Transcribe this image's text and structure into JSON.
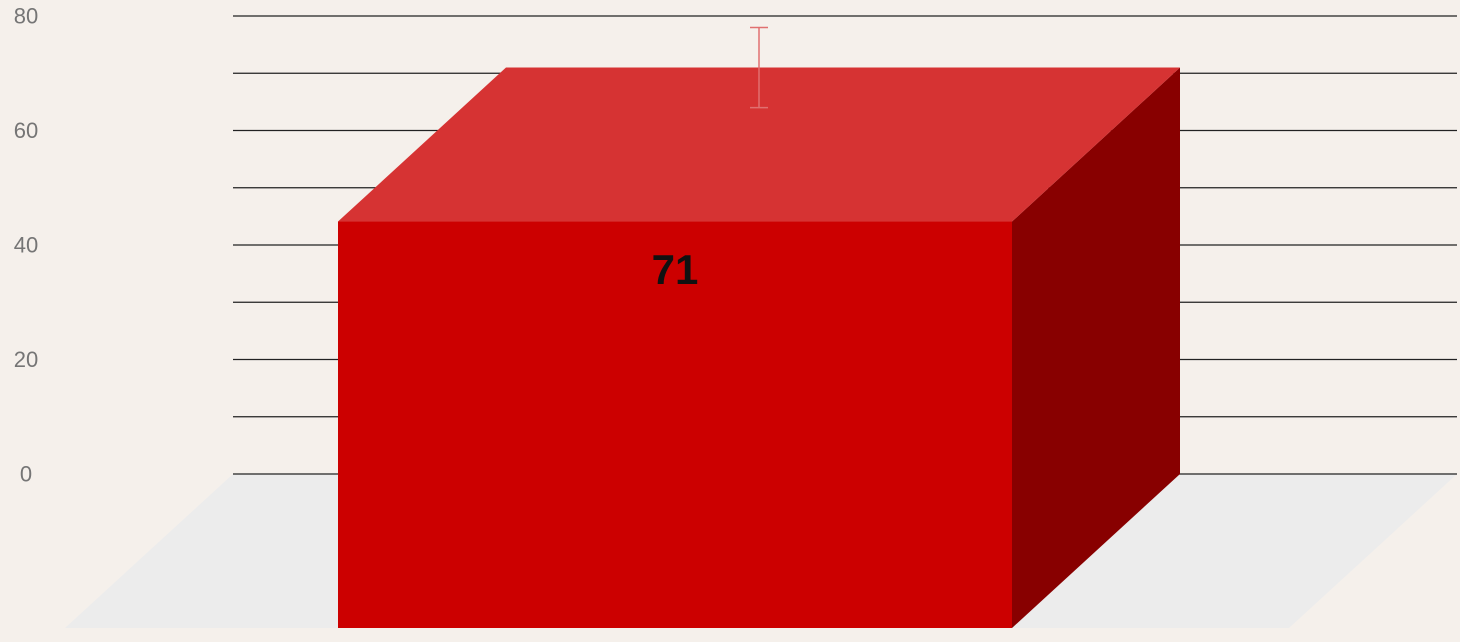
{
  "chart_data": {
    "type": "bar",
    "style": "3d",
    "categories": [
      ""
    ],
    "values": [
      71
    ],
    "error_bar": {
      "upper": 78,
      "lower": 64
    },
    "data_labels": [
      "71"
    ],
    "title": "",
    "xlabel": "",
    "ylabel": "",
    "ylim": [
      0,
      80
    ],
    "y_ticks": [
      0,
      20,
      40,
      60,
      80
    ],
    "y_tick_labels": [
      "0",
      "20",
      "40",
      "60",
      "80"
    ],
    "minor_grid_step": 10,
    "grid": true,
    "legend": "none",
    "colors": {
      "background": "#f5f0eb",
      "floor": "#ececec",
      "gridline": "#222222",
      "tick_text": "#757575",
      "bar_front": "#cc0000",
      "bar_top": "#d63333",
      "bar_side": "#880000",
      "error_bar": "#e07070",
      "label_text": "#111111"
    }
  }
}
